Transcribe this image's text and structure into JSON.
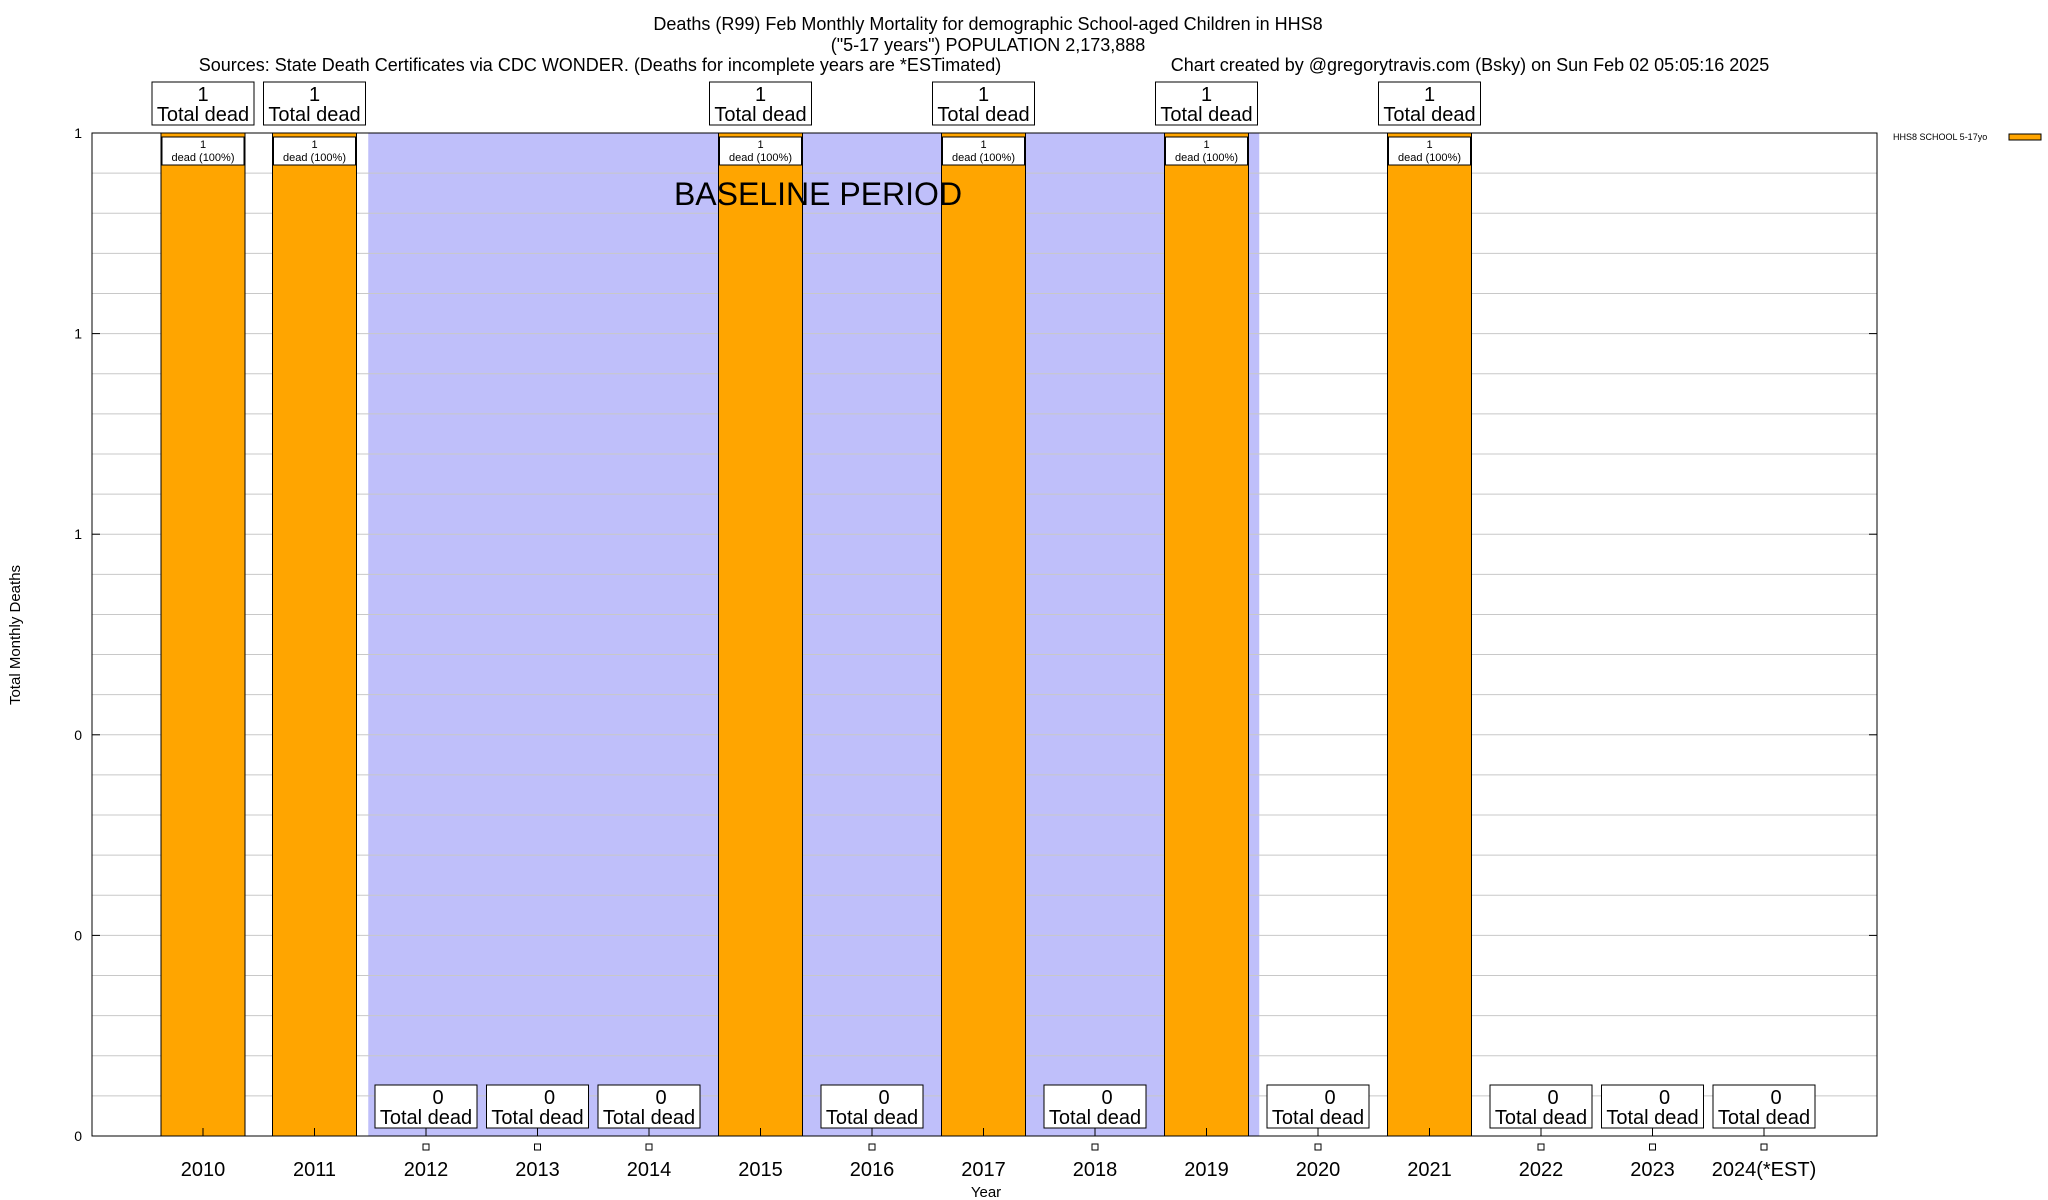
{
  "chart_data": {
    "type": "bar",
    "title": "Deaths (R99) Feb Monthly Mortality for demographic School-aged Children in HHS8",
    "subtitle": "(\"5-17 years\") POPULATION 2,173,888",
    "sources": "Sources: State Death Certificates via CDC WONDER. (Deaths for incomplete years are *ESTimated)",
    "credit": "Chart created by @gregorytravis.com (Bsky) on Sun Feb 02 05:05:16 2025",
    "xlabel": "Year",
    "ylabel": "Total Monthly Deaths",
    "categories": [
      "2010",
      "2011",
      "2012",
      "2013",
      "2014",
      "2015",
      "2016",
      "2017",
      "2018",
      "2019",
      "2020",
      "2021",
      "2022",
      "2023",
      "2024(*EST)"
    ],
    "series": [
      {
        "name": "HHS8 SCHOOL 5-17yo",
        "color": "#ffa500",
        "values": [
          1,
          1,
          0,
          0,
          0,
          1,
          0,
          1,
          0,
          1,
          0,
          1,
          0,
          0,
          0
        ]
      }
    ],
    "ylim": [
      0,
      1
    ],
    "y_ticks": [
      0,
      0.2,
      0.4,
      0.6,
      0.8,
      1.0
    ],
    "y_tick_labels": [
      "0",
      "0",
      "0",
      "1",
      "1",
      "1"
    ],
    "grid": true,
    "legend_position": "top-right",
    "baseline_period": {
      "label": "BASELINE PERIOD",
      "from_category": "2012",
      "to_category": "2019",
      "color": "#bfbffa"
    },
    "total_label_suffix": "Total dead",
    "bar_label_text": "dead (100%)"
  }
}
